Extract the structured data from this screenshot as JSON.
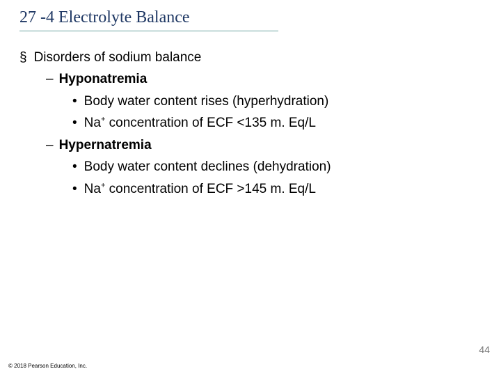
{
  "title": "27 -4 Electrolyte Balance",
  "content": {
    "lvl1_bullet": "§",
    "lvl1_text": "Disorders of sodium balance",
    "lvl2_bullet": "–",
    "lvl3_bullet": "•",
    "hypo": {
      "label": "Hyponatremia",
      "p1": "Body water content rises (hyperhydration)",
      "p2_pre": "Na",
      "p2_sup": "+",
      "p2_post": " concentration of ECF <135 m. Eq/L"
    },
    "hyper": {
      "label": "Hypernatremia",
      "p1": "Body water content declines (dehydration)",
      "p2_pre": "Na",
      "p2_sup": "+",
      "p2_post": " concentration of ECF >145 m. Eq/L"
    }
  },
  "page_number": "44",
  "copyright": "© 2018 Pearson Education, Inc.",
  "style": {
    "title_color": "#1f3864",
    "title_fontsize": 24,
    "underline_color": "#6aa4a0",
    "body_fontsize": 19,
    "background": "#ffffff",
    "pagenum_color": "#777777"
  }
}
